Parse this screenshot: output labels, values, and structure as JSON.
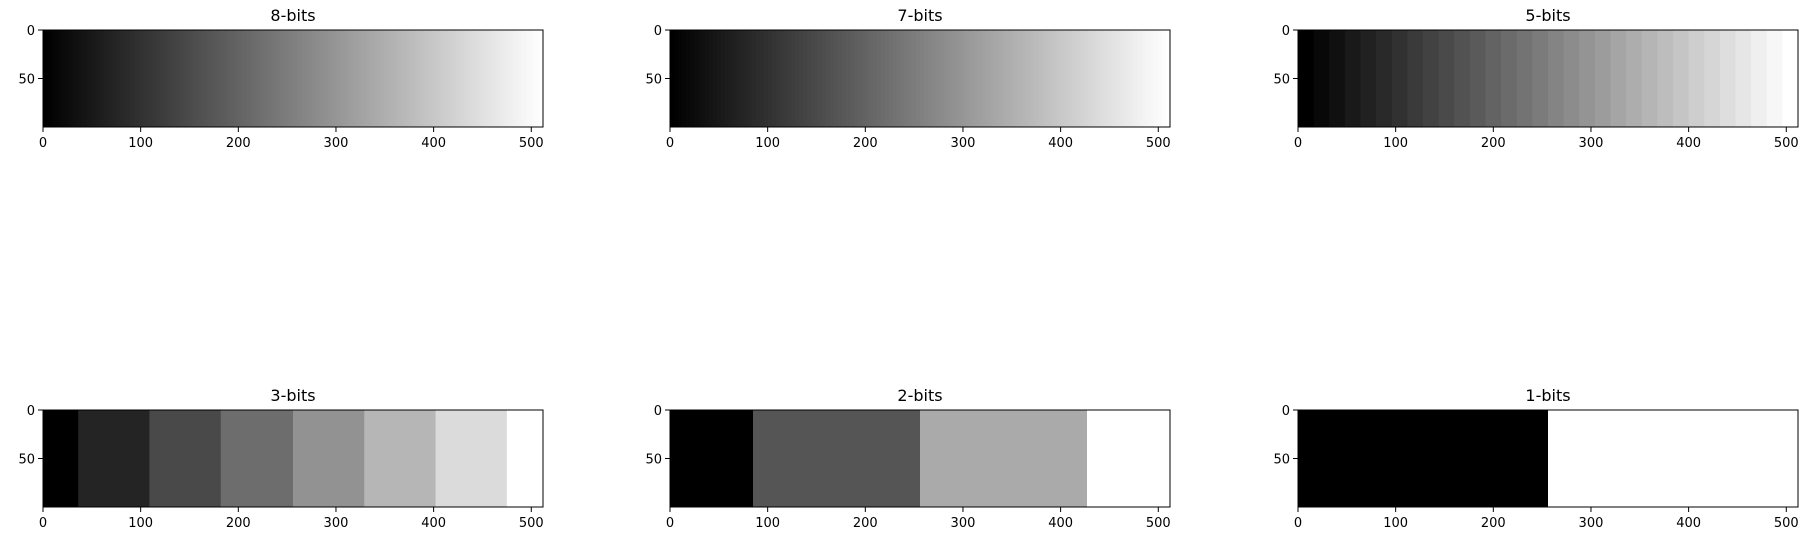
{
  "chart_data": [
    {
      "type": "heatmap",
      "title": "8-bits",
      "xlim": [
        0,
        512
      ],
      "ylim": [
        100,
        0
      ],
      "xticks": [
        "0",
        "100",
        "200",
        "300",
        "400",
        "500"
      ],
      "yticks": [
        "0",
        "50"
      ],
      "levels": 256,
      "colormap": "gray"
    },
    {
      "type": "heatmap",
      "title": "7-bits",
      "xlim": [
        0,
        512
      ],
      "ylim": [
        100,
        0
      ],
      "xticks": [
        "0",
        "100",
        "200",
        "300",
        "400",
        "500"
      ],
      "yticks": [
        "0",
        "50"
      ],
      "levels": 128,
      "colormap": "gray"
    },
    {
      "type": "heatmap",
      "title": "5-bits",
      "xlim": [
        0,
        512
      ],
      "ylim": [
        100,
        0
      ],
      "xticks": [
        "0",
        "100",
        "200",
        "300",
        "400",
        "500"
      ],
      "yticks": [
        "0",
        "50"
      ],
      "levels": 32,
      "colormap": "gray"
    },
    {
      "type": "heatmap",
      "title": "3-bits",
      "xlim": [
        0,
        512
      ],
      "ylim": [
        100,
        0
      ],
      "xticks": [
        "0",
        "100",
        "200",
        "300",
        "400",
        "500"
      ],
      "yticks": [
        "0",
        "50"
      ],
      "levels": 8,
      "colormap": "gray",
      "band_edges": [
        0,
        36,
        109,
        182,
        256,
        329,
        402,
        475,
        512
      ],
      "band_values": [
        0,
        36,
        73,
        109,
        146,
        182,
        219,
        255
      ]
    },
    {
      "type": "heatmap",
      "title": "2-bits",
      "xlim": [
        0,
        512
      ],
      "ylim": [
        100,
        0
      ],
      "xticks": [
        "0",
        "100",
        "200",
        "300",
        "400",
        "500"
      ],
      "yticks": [
        "0",
        "50"
      ],
      "levels": 4,
      "colormap": "gray",
      "band_edges": [
        0,
        85,
        256,
        427,
        512
      ],
      "band_values": [
        0,
        85,
        170,
        255
      ]
    },
    {
      "type": "heatmap",
      "title": "1-bits",
      "xlim": [
        0,
        512
      ],
      "ylim": [
        100,
        0
      ],
      "xticks": [
        "0",
        "100",
        "200",
        "300",
        "400",
        "500"
      ],
      "yticks": [
        "0",
        "50"
      ],
      "levels": 2,
      "colormap": "gray",
      "band_edges": [
        0,
        256,
        512
      ],
      "band_values": [
        0,
        255
      ]
    }
  ]
}
